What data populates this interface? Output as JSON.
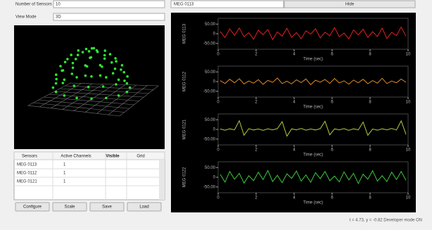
{
  "controls": {
    "sensors_label": "Number of Sensors",
    "sensors_value": "10",
    "view_label": "View Mode",
    "view_value": "3D",
    "channel_select": "MEG 0113",
    "top_button": "Hide"
  },
  "table": {
    "headers": [
      "Sensors",
      "Active Channels",
      "Visible",
      "Grid"
    ],
    "rows": [
      [
        "MEG 0113",
        "1"
      ],
      [
        "MEG 0112",
        "1"
      ],
      [
        "MEG 0121",
        "1"
      ]
    ]
  },
  "buttons": [
    "Configure",
    "Scale",
    "Save",
    "Load"
  ],
  "status": "t = 4.73, y = -0.82 Developer mode ON",
  "chart_data": [
    {
      "type": "line",
      "y_label": "MEG 0113",
      "x_label": "Time (sec)",
      "color": "#e02020",
      "values": [
        12,
        -20,
        25,
        -8,
        30,
        -15,
        5,
        -28,
        18,
        -5,
        22,
        -30,
        10,
        -12,
        28,
        -18,
        6,
        -25,
        15,
        -2,
        26,
        -22,
        8,
        -10,
        32,
        -16,
        4,
        -27,
        20,
        -6,
        24,
        -19,
        11,
        -14,
        29,
        -24,
        7,
        -9,
        35,
        -12
      ],
      "ylim": [
        -80,
        80
      ],
      "yticks": [
        {
          "value": 50,
          "label": "50.00"
        },
        0,
        {
          "value": -50,
          "label": "-50.00"
        }
      ],
      "xlim": [
        0,
        10
      ],
      "xticks": [
        0,
        2,
        4,
        6,
        8,
        10
      ]
    },
    {
      "type": "line",
      "y_label": "MEG 0112",
      "x_label": "Time (sec)",
      "color": "#e08a28",
      "values": [
        5,
        -10,
        12,
        -6,
        15,
        -12,
        3,
        -8,
        10,
        -14,
        6,
        -4,
        18,
        -10,
        2,
        -12,
        9,
        -5,
        14,
        -16,
        7,
        -3,
        11,
        -9,
        16,
        -7,
        4,
        -13,
        8,
        -6,
        12,
        -11,
        5,
        -8,
        17,
        -10,
        3,
        -6,
        13,
        -4
      ],
      "ylim": [
        -80,
        80
      ],
      "yticks": [
        {
          "value": 50,
          "label": "50.00"
        },
        0,
        {
          "value": -50,
          "label": "-50.00"
        }
      ],
      "xlim": [
        0,
        10
      ],
      "xticks": [
        0,
        2,
        4,
        6,
        8,
        10
      ]
    },
    {
      "type": "line",
      "y_label": "MEG 0121",
      "x_label": "Time (sec)",
      "color": "#b8c83a",
      "values": [
        2,
        -4,
        3,
        -2,
        45,
        -30,
        4,
        -3,
        2,
        -5,
        3,
        -2,
        4,
        40,
        -35,
        3,
        -2,
        5,
        -4,
        2,
        -3,
        4,
        42,
        -28,
        3,
        -2,
        4,
        -5,
        3,
        -2,
        38,
        -30,
        2,
        -4,
        3,
        -2,
        5,
        -3,
        44,
        -25
      ],
      "ylim": [
        -80,
        80
      ],
      "yticks": [
        {
          "value": 50,
          "label": "50.00"
        },
        0,
        {
          "value": -50,
          "label": "-50.00"
        }
      ],
      "xlim": [
        0,
        10
      ],
      "xticks": [
        0,
        2,
        4,
        6,
        8,
        10
      ]
    },
    {
      "type": "line",
      "y_label": "MEG 0122",
      "x_label": "Time (sec)",
      "color": "#3cc83c",
      "values": [
        15,
        -25,
        30,
        -10,
        20,
        -30,
        8,
        -18,
        26,
        -12,
        35,
        -22,
        10,
        -28,
        18,
        -6,
        32,
        -20,
        12,
        -26,
        24,
        -8,
        30,
        -18,
        6,
        -24,
        28,
        -14,
        20,
        -32,
        16,
        -10,
        34,
        -20,
        8,
        -22,
        26,
        -12,
        30,
        -16
      ],
      "ylim": [
        -80,
        80
      ],
      "yticks": [
        {
          "value": 50,
          "label": "50.00"
        },
        0,
        {
          "value": -50,
          "label": "-50.00"
        }
      ],
      "xlim": [
        0,
        10
      ],
      "xticks": [
        0,
        2,
        4,
        6,
        8,
        10
      ]
    }
  ]
}
